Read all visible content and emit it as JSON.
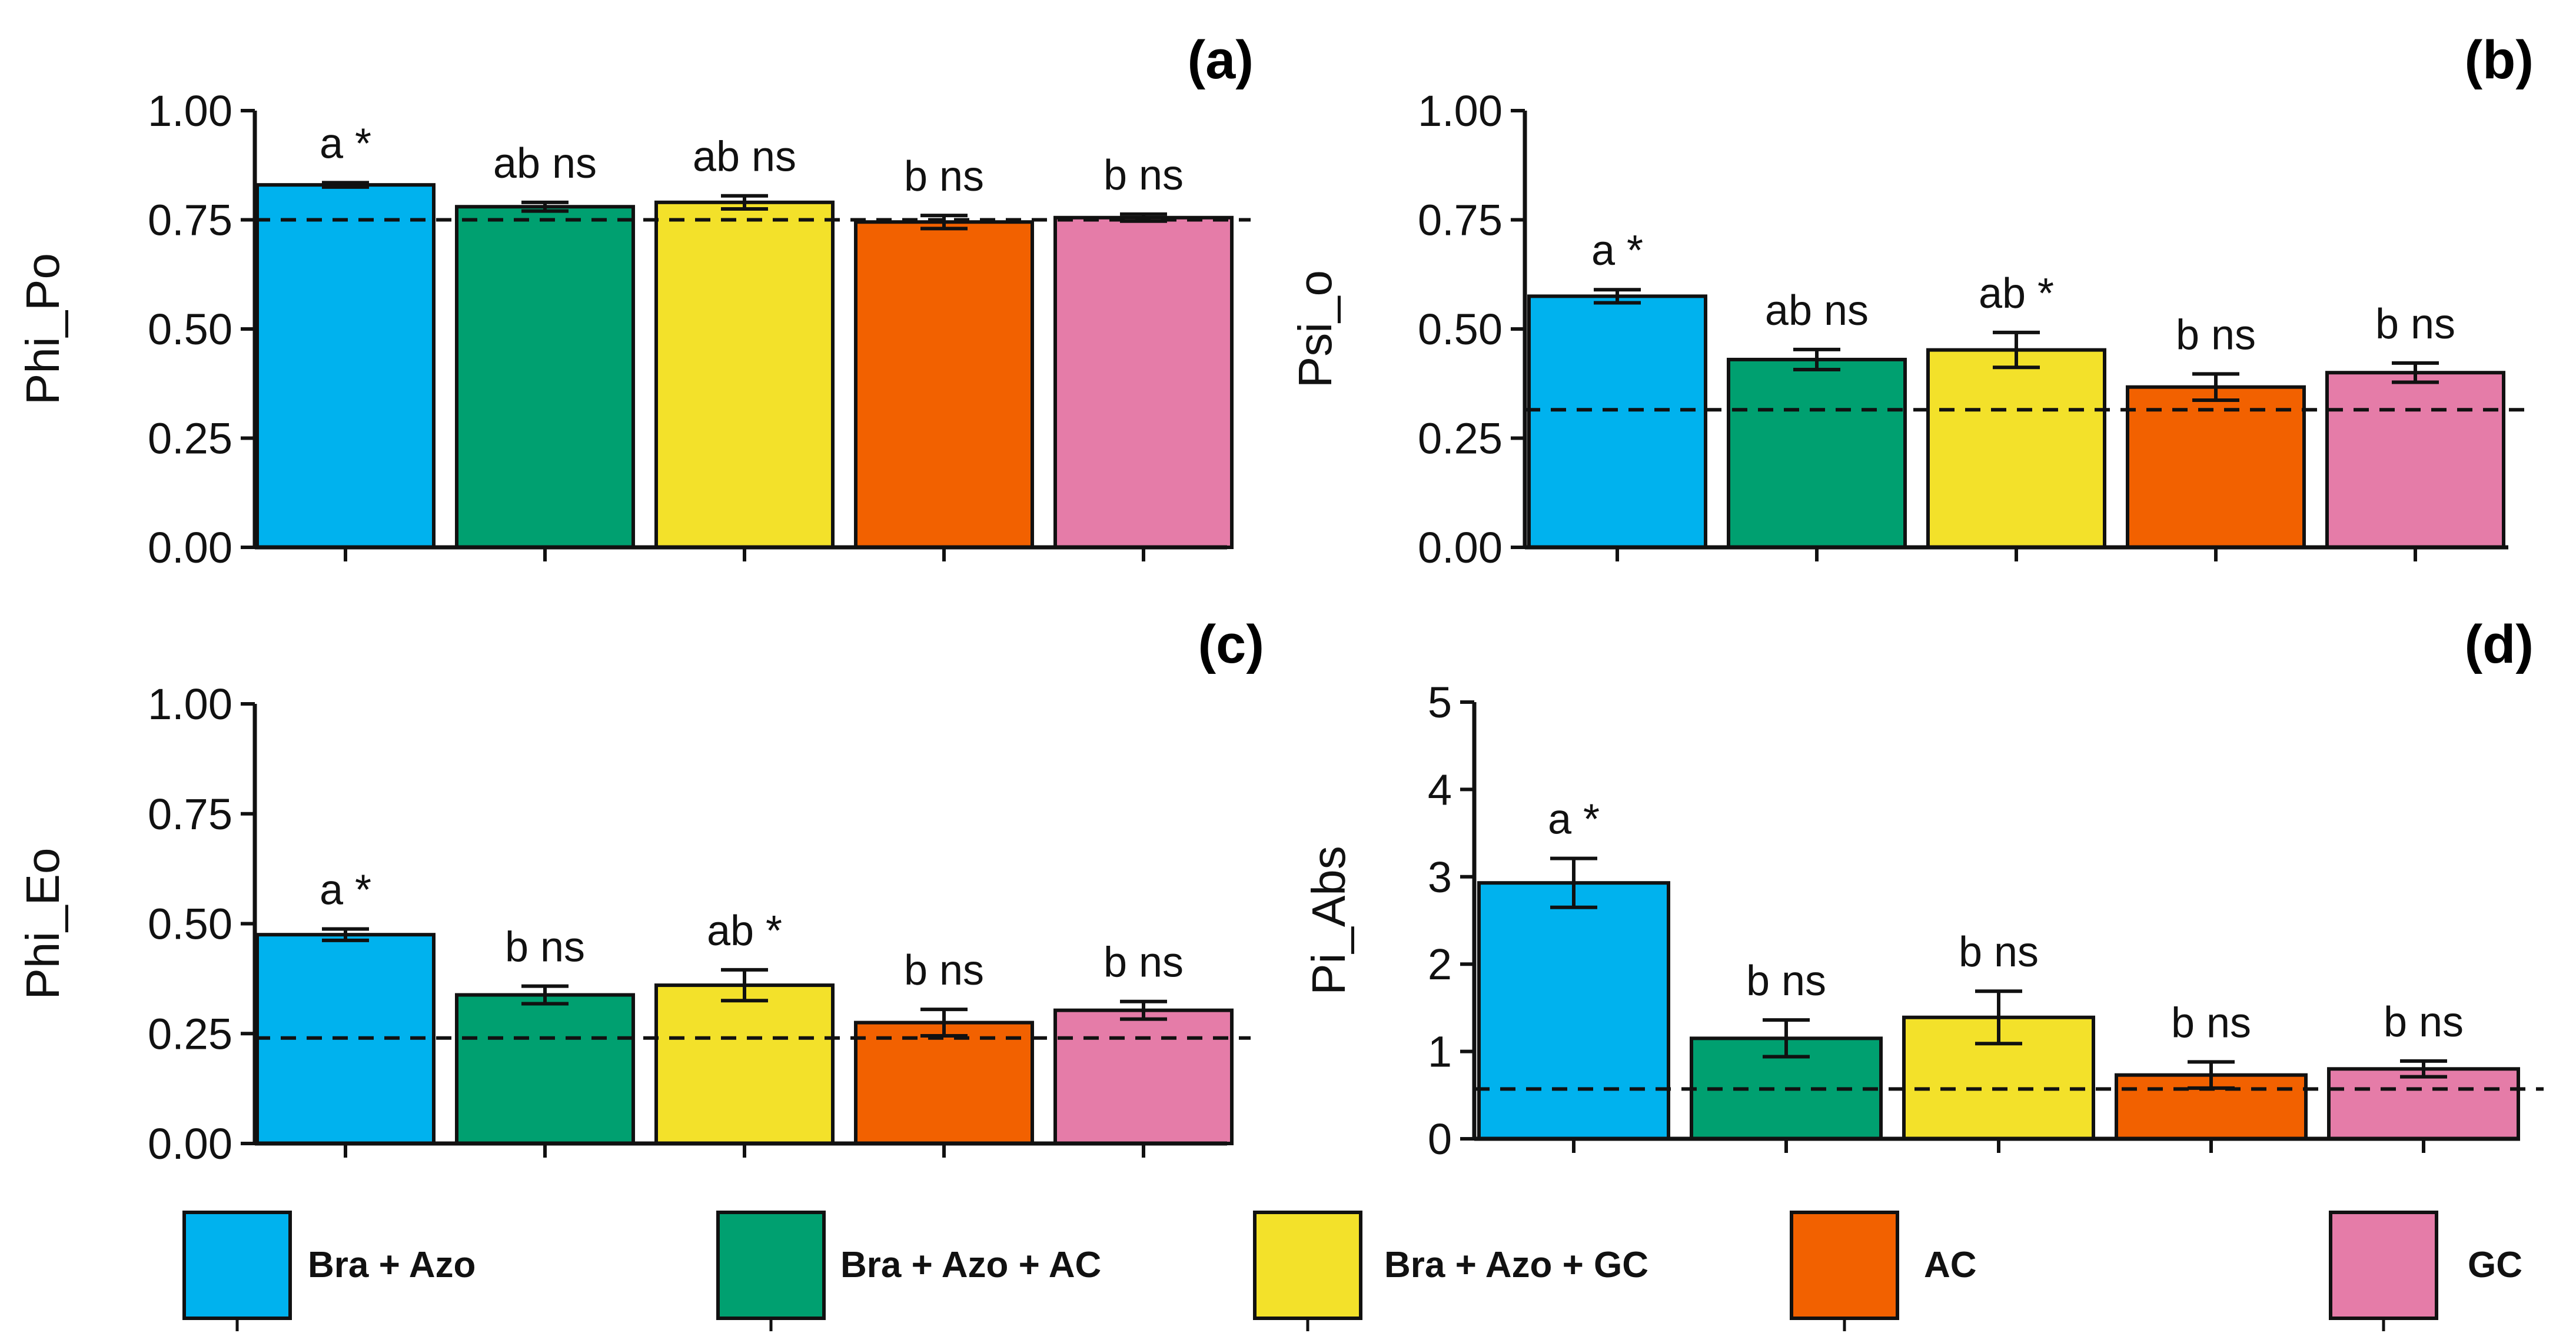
{
  "colors": {
    "Bra + Azo": "#00B2EE",
    "Bra + Azo + AC": "#00A070",
    "Bra + Azo + GC": "#F3E12A",
    "AC": "#F26100",
    "GC": "#E57CA8"
  },
  "legend": {
    "items": [
      {
        "label": "Bra + Azo",
        "color": "#00B2EE"
      },
      {
        "label": "Bra + Azo + AC",
        "color": "#00A070"
      },
      {
        "label": "Bra + Azo + GC",
        "color": "#F3E12A"
      },
      {
        "label": "AC",
        "color": "#F26100"
      },
      {
        "label": "GC",
        "color": "#E57CA8"
      }
    ]
  },
  "chart_data": [
    {
      "type": "bar",
      "panel_label": "(a)",
      "ylabel": "Phi_Po",
      "categories": [
        "Bra + Azo",
        "Bra + Azo + AC",
        "Bra + Azo + GC",
        "AC",
        "GC"
      ],
      "values": [
        0.83,
        0.78,
        0.79,
        0.745,
        0.755
      ],
      "errors": [
        0.005,
        0.01,
        0.015,
        0.015,
        0.008
      ],
      "annotations": [
        "a *",
        "ab ns",
        "ab ns",
        "b ns",
        "b ns"
      ],
      "reference_line": 0.75,
      "ylim": [
        0,
        1
      ],
      "yticks": [
        "0.00",
        "0.25",
        "0.50",
        "0.75",
        "1.00"
      ]
    },
    {
      "type": "bar",
      "panel_label": "(b)",
      "ylabel": "Psi_o",
      "categories": [
        "Bra + Azo",
        "Bra + Azo + AC",
        "Bra + Azo + GC",
        "AC",
        "GC"
      ],
      "values": [
        0.575,
        0.43,
        0.452,
        0.367,
        0.4
      ],
      "errors": [
        0.015,
        0.023,
        0.04,
        0.03,
        0.022
      ],
      "annotations": [
        "a *",
        "ab ns",
        "ab *",
        "b ns",
        "b ns"
      ],
      "reference_line": 0.315,
      "ylim": [
        0,
        1
      ],
      "yticks": [
        "0.00",
        "0.25",
        "0.50",
        "0.75",
        "1.00"
      ]
    },
    {
      "type": "bar",
      "panel_label": "(c)",
      "ylabel": "Phi_Eo",
      "categories": [
        "Bra + Azo",
        "Bra + Azo + AC",
        "Bra + Azo + GC",
        "AC",
        "GC"
      ],
      "values": [
        0.475,
        0.338,
        0.36,
        0.275,
        0.303
      ],
      "errors": [
        0.013,
        0.02,
        0.035,
        0.03,
        0.02
      ],
      "annotations": [
        "a *",
        "b ns",
        "ab *",
        "b ns",
        "b ns"
      ],
      "reference_line": 0.24,
      "ylim": [
        0,
        1
      ],
      "yticks": [
        "0.00",
        "0.25",
        "0.50",
        "0.75",
        "1.00"
      ]
    },
    {
      "type": "bar",
      "panel_label": "(d)",
      "ylabel": "Pi_Abs",
      "categories": [
        "Bra + Azo",
        "Bra + Azo + AC",
        "Bra + Azo + GC",
        "AC",
        "GC"
      ],
      "values": [
        2.93,
        1.15,
        1.39,
        0.73,
        0.8
      ],
      "errors": [
        0.28,
        0.21,
        0.3,
        0.15,
        0.09
      ],
      "annotations": [
        "a *",
        "b ns",
        "b ns",
        "b ns",
        "b ns"
      ],
      "reference_line": 0.57,
      "ylim": [
        0,
        5
      ],
      "yticks": [
        "0",
        "1",
        "2",
        "3",
        "4",
        "5"
      ]
    }
  ]
}
